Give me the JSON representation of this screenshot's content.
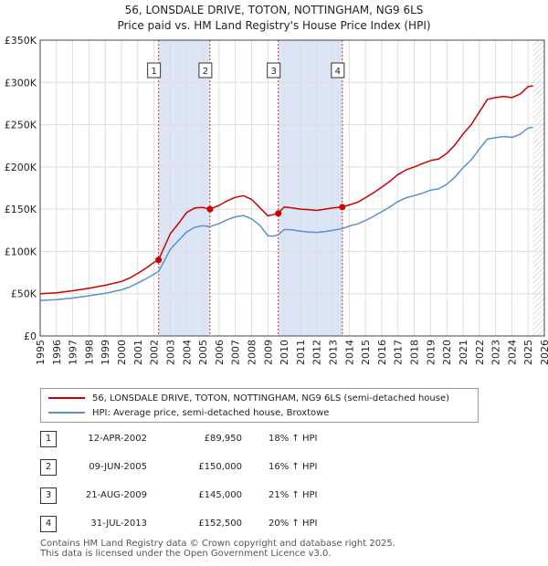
{
  "header": {
    "title": "56, LONSDALE DRIVE, TOTON, NOTTINGHAM, NG9 6LS",
    "subtitle": "Price paid vs. HM Land Registry's House Price Index (HPI)"
  },
  "colors": {
    "property": "#cc0000",
    "hpi": "#5b8fd0",
    "shade": "#dbe5f5",
    "grid": "#dddddd"
  },
  "chart_data": {
    "type": "line",
    "title": "56, LONSDALE DRIVE, TOTON, NOTTINGHAM, NG9 6LS",
    "subtitle": "Price paid vs. HM Land Registry's House Price Index (HPI)",
    "xlabel": "",
    "ylabel": "",
    "xlim": [
      1995,
      2026
    ],
    "ylim": [
      0,
      350000
    ],
    "x_ticks": [
      "1995",
      "1996",
      "1997",
      "1998",
      "1999",
      "2000",
      "2001",
      "2002",
      "2003",
      "2004",
      "2005",
      "2006",
      "2007",
      "2008",
      "2009",
      "2010",
      "2011",
      "2012",
      "2013",
      "2014",
      "2015",
      "2016",
      "2017",
      "2018",
      "2019",
      "2020",
      "2021",
      "2022",
      "2023",
      "2024",
      "2025",
      "2026"
    ],
    "y_ticks": [
      {
        "value": 0,
        "label": "£0"
      },
      {
        "value": 50000,
        "label": "£50K"
      },
      {
        "value": 100000,
        "label": "£100K"
      },
      {
        "value": 150000,
        "label": "£150K"
      },
      {
        "value": 200000,
        "label": "£200K"
      },
      {
        "value": 250000,
        "label": "£250K"
      },
      {
        "value": 300000,
        "label": "£300K"
      },
      {
        "value": 350000,
        "label": "£350K"
      }
    ],
    "grid": true,
    "shaded_ranges": [
      [
        2002.28,
        2005.44
      ],
      [
        2009.64,
        2013.58
      ]
    ],
    "future_hatch_from": 2025.3,
    "series": [
      {
        "name": "56, LONSDALE DRIVE, TOTON, NOTTINGHAM, NG9 6LS (semi-detached house)",
        "color": "#cc0000",
        "x": [
          1995,
          1996,
          1997,
          1998,
          1999,
          2000,
          2000.5,
          2001,
          2001.5,
          2002,
          2002.28,
          2002.7,
          2003,
          2003.5,
          2004,
          2004.5,
          2005,
          2005.44,
          2006,
          2006.5,
          2007,
          2007.5,
          2008,
          2008.5,
          2009,
          2009.3,
          2009.64,
          2010,
          2010.5,
          2011,
          2011.5,
          2012,
          2012.5,
          2013,
          2013.58,
          2014,
          2014.5,
          2015,
          2015.5,
          2016,
          2016.5,
          2017,
          2017.5,
          2018,
          2018.5,
          2019,
          2019.5,
          2020,
          2020.5,
          2021,
          2021.5,
          2022,
          2022.5,
          2023,
          2023.5,
          2024,
          2024.5,
          2025,
          2025.3
        ],
        "values": [
          50000,
          51000,
          53500,
          56500,
          60000,
          64500,
          68500,
          74000,
          80000,
          87000,
          89950,
          108000,
          121000,
          133000,
          146000,
          151500,
          152000,
          150000,
          154500,
          160000,
          164000,
          166000,
          161500,
          152000,
          142000,
          143500,
          145000,
          152500,
          151500,
          150000,
          149500,
          148500,
          150000,
          151500,
          152500,
          155000,
          158000,
          163500,
          169500,
          176000,
          183000,
          191000,
          196500,
          200000,
          204000,
          207500,
          209500,
          216000,
          226000,
          239000,
          250000,
          265000,
          280000,
          282000,
          283500,
          282000,
          286000,
          295000,
          296000
        ]
      },
      {
        "name": "HPI: Average price, semi-detached house, Broxtowe",
        "color": "#5b8fd0",
        "x": [
          1995,
          1996,
          1997,
          1998,
          1999,
          2000,
          2000.5,
          2001,
          2001.5,
          2002,
          2002.28,
          2002.7,
          2003,
          2003.5,
          2004,
          2004.5,
          2005,
          2005.44,
          2006,
          2006.5,
          2007,
          2007.5,
          2008,
          2008.5,
          2009,
          2009.3,
          2009.64,
          2010,
          2010.5,
          2011,
          2011.5,
          2012,
          2012.5,
          2013,
          2013.58,
          2014,
          2014.5,
          2015,
          2015.5,
          2016,
          2016.5,
          2017,
          2017.5,
          2018,
          2018.5,
          2019,
          2019.5,
          2020,
          2020.5,
          2021,
          2021.5,
          2022,
          2022.5,
          2023,
          2023.5,
          2024,
          2024.5,
          2025,
          2025.3
        ],
        "values": [
          42000,
          43000,
          44800,
          47500,
          50500,
          54500,
          58000,
          62500,
          67500,
          73000,
          76200,
          91500,
          102500,
          113000,
          123000,
          128500,
          130500,
          129300,
          133000,
          137500,
          141000,
          142500,
          138500,
          131000,
          118500,
          118000,
          119800,
          126000,
          125500,
          124000,
          123000,
          122500,
          123500,
          125000,
          127100,
          130000,
          132500,
          136500,
          141500,
          147000,
          152500,
          159000,
          163500,
          166000,
          169000,
          172500,
          174000,
          179500,
          188000,
          199000,
          208500,
          221000,
          233000,
          234500,
          236000,
          235000,
          238500,
          246000,
          247000
        ]
      }
    ],
    "annotations": [
      {
        "label": "1",
        "x": 2002.28,
        "value": 89950
      },
      {
        "label": "2",
        "x": 2005.44,
        "value": 150000
      },
      {
        "label": "3",
        "x": 2009.64,
        "value": 145000
      },
      {
        "label": "4",
        "x": 2013.58,
        "value": 152500
      }
    ]
  },
  "legend": {
    "items": [
      {
        "label": "56, LONSDALE DRIVE, TOTON, NOTTINGHAM, NG9 6LS (semi-detached house)",
        "color": "#cc0000"
      },
      {
        "label": "HPI: Average price, semi-detached house, Broxtowe",
        "color": "#5b8fd0"
      }
    ]
  },
  "transactions": [
    {
      "num": "1",
      "date": "12-APR-2002",
      "price": "£89,950",
      "hpi": "18% ↑ HPI"
    },
    {
      "num": "2",
      "date": "09-JUN-2005",
      "price": "£150,000",
      "hpi": "16% ↑ HPI"
    },
    {
      "num": "3",
      "date": "21-AUG-2009",
      "price": "£145,000",
      "hpi": "21% ↑ HPI"
    },
    {
      "num": "4",
      "date": "31-JUL-2013",
      "price": "£152,500",
      "hpi": "20% ↑ HPI"
    }
  ],
  "footer": {
    "line1": "Contains HM Land Registry data © Crown copyright and database right 2025.",
    "line2": "This data is licensed under the Open Government Licence v3.0."
  }
}
